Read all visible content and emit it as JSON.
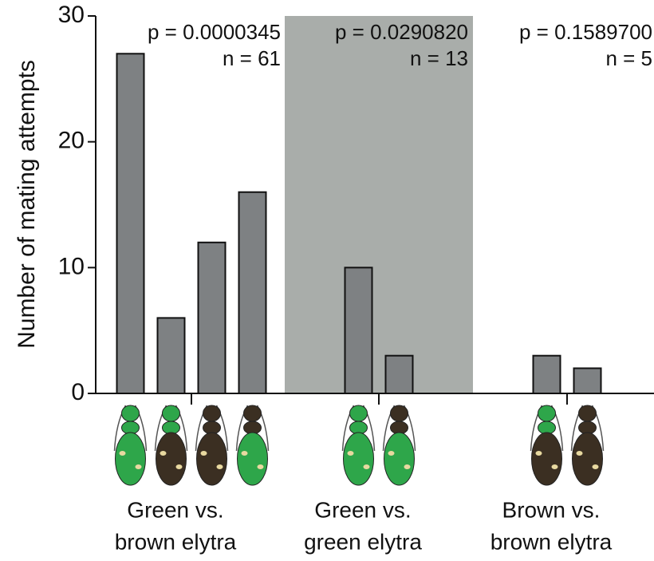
{
  "chart_data": {
    "type": "bar",
    "ylabel": "Number of mating attempts",
    "ylim": [
      0,
      30
    ],
    "yticks": [
      0,
      10,
      20,
      30
    ],
    "color": "#7e8183",
    "shade_color": "#a9adaa",
    "shaded_group": 1,
    "groups": [
      {
        "label": [
          "Green vs.",
          "brown elytra"
        ],
        "p": "p = 0.0000345",
        "n": "n = 61",
        "values": [
          27,
          6,
          12,
          16
        ]
      },
      {
        "label": [
          "Green vs.",
          "green elytra"
        ],
        "p": "p = 0.0290820",
        "n": "n = 13",
        "values": [
          10,
          3
        ]
      },
      {
        "label": [
          "Brown vs.",
          "brown elytra"
        ],
        "p": "p = 0.1589700",
        "n": "n = 5",
        "values": [
          3,
          2
        ]
      }
    ]
  }
}
